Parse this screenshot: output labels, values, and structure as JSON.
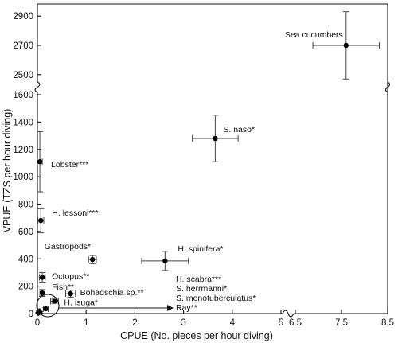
{
  "chart_data": {
    "type": "scatter",
    "xlabel": "CPUE (No. pieces per hour diving)",
    "ylabel": "VPUE (TZS per hour diving)",
    "x_ticks_lower": [
      "0",
      "1",
      "2",
      "3",
      "4",
      "5"
    ],
    "x_ticks_upper": [
      "6.5",
      "7.5",
      "8.5"
    ],
    "y_ticks_lower": [
      "0",
      "200",
      "400",
      "600",
      "800",
      "1000",
      "1200",
      "1400",
      "1600"
    ],
    "y_ticks_upper": [
      "2500",
      "2700",
      "2900"
    ],
    "xlim_lower": [
      0,
      5
    ],
    "xlim_upper": [
      6.5,
      8.5
    ],
    "ylim_lower": [
      0,
      1600
    ],
    "ylim_upper": [
      2450,
      2950
    ],
    "points": [
      {
        "label": "Sea cucumbers",
        "x": 7.6,
        "y": 2700,
        "xerr": 0.72,
        "yerr": 230
      },
      {
        "label": "S. naso*",
        "x": 3.65,
        "y": 1280,
        "xerr": 0.47,
        "yerr": 170
      },
      {
        "label": "Lobster***",
        "x": 0.05,
        "y": 1110,
        "xerr": 0.05,
        "yerr": 220
      },
      {
        "label": "H. lessoni***",
        "x": 0.07,
        "y": 680,
        "xerr": 0.06,
        "yerr": 90
      },
      {
        "label": "Gastropods*",
        "x": 1.13,
        "y": 395,
        "xerr": 0.08,
        "yerr": 30
      },
      {
        "label": "H. spinifera*",
        "x": 2.62,
        "y": 385,
        "xerr": 0.48,
        "yerr": 70
      },
      {
        "label": "Octopus**",
        "x": 0.1,
        "y": 265,
        "xerr": 0.06,
        "yerr": 35
      },
      {
        "label": "Fish**",
        "x": 0.1,
        "y": 150,
        "xerr": 0.05,
        "yerr": 25
      },
      {
        "label": "Bohadschia sp.**",
        "x": 0.68,
        "y": 145,
        "xerr": 0.1,
        "yerr": 25
      },
      {
        "label": "H. isuga*",
        "x": 0.35,
        "y": 90,
        "xerr": 0.08,
        "yerr": 15
      },
      {
        "label": "",
        "x": 0.17,
        "y": 35,
        "xerr": 0.05,
        "yerr": 10
      },
      {
        "label": "",
        "x": 0.03,
        "y": 18,
        "xerr": 0.02,
        "yerr": 6
      },
      {
        "label": "",
        "x": 0.05,
        "y": 10,
        "xerr": 0.02,
        "yerr": 5
      },
      {
        "label": "",
        "x": 0.02,
        "y": 5,
        "xerr": 0.01,
        "yerr": 4
      }
    ],
    "annotations": [
      "H. scabra***",
      "S. herrmanni*",
      "S. monotuberculatus*",
      "Ray**"
    ]
  }
}
